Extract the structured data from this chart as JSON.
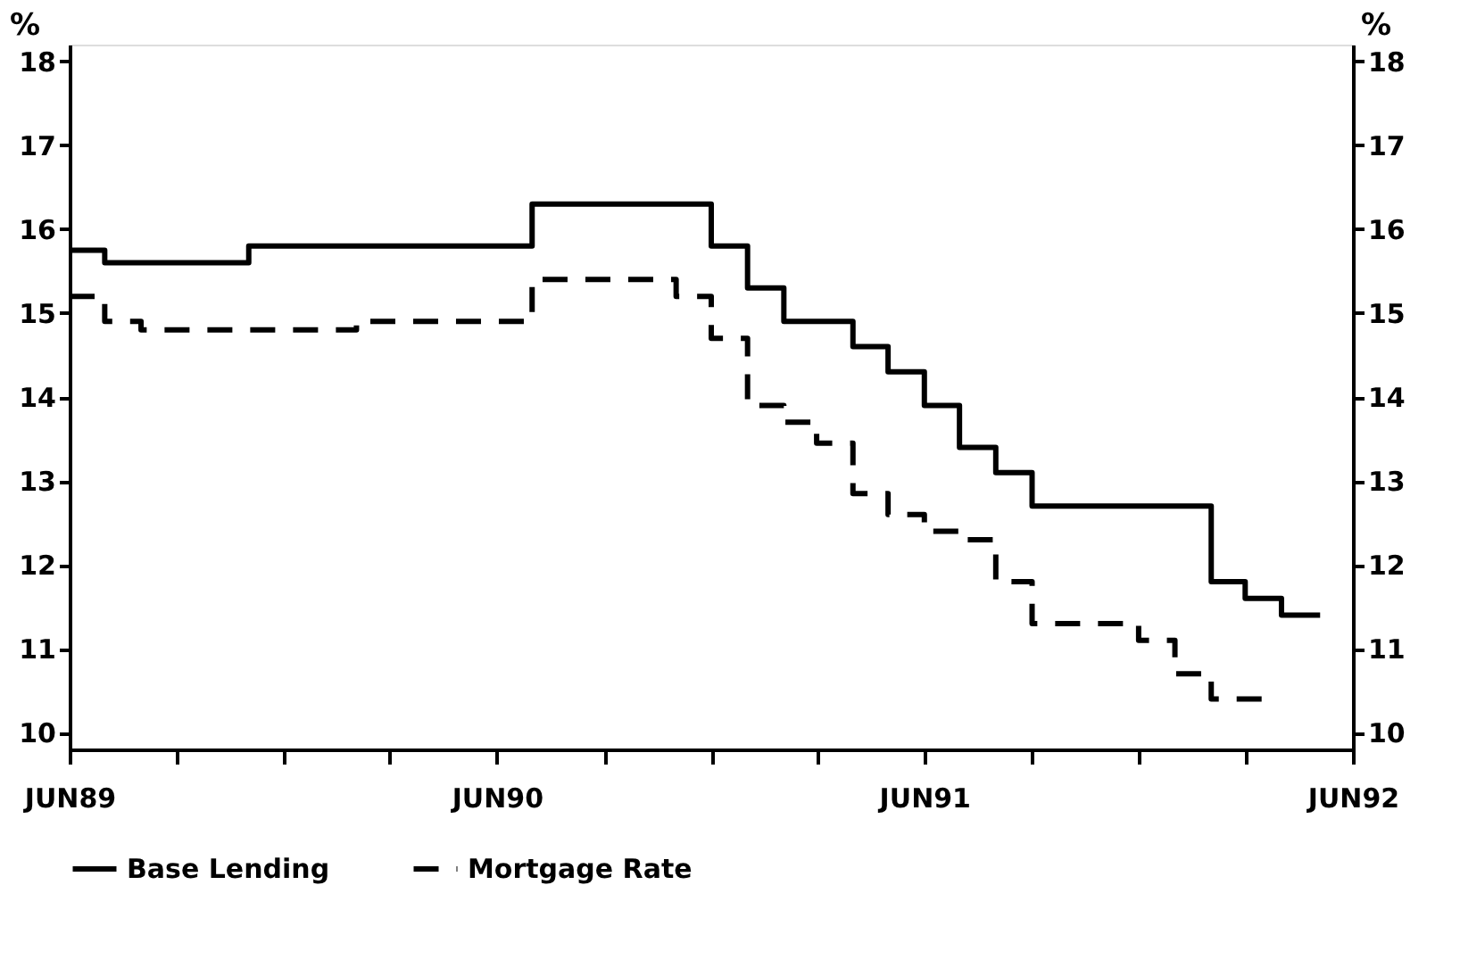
{
  "chart_data": {
    "type": "step",
    "ylabel": "%",
    "y2label": "%",
    "xlim": [
      "1989-06",
      "1992-06"
    ],
    "xticks": [
      {
        "value": "1989-06",
        "label": "JUN89"
      },
      {
        "value": "1989-09",
        "label": null
      },
      {
        "value": "1989-12",
        "label": null
      },
      {
        "value": "1990-03",
        "label": null
      },
      {
        "value": "1990-06",
        "label": "JUN90"
      },
      {
        "value": "1990-09",
        "label": null
      },
      {
        "value": "1990-12",
        "label": null
      },
      {
        "value": "1991-03",
        "label": null
      },
      {
        "value": "1991-06",
        "label": "JUN91"
      },
      {
        "value": "1991-09",
        "label": null
      },
      {
        "value": "1991-12",
        "label": null
      },
      {
        "value": "1992-03",
        "label": null
      },
      {
        "value": "1992-06",
        "label": "JUN92"
      }
    ],
    "ylim": [
      9.8,
      18.2
    ],
    "yticks": [
      10,
      11,
      12,
      13,
      14,
      15,
      16,
      17,
      18
    ],
    "y2lim": [
      9.8,
      18.2
    ],
    "y2ticks": [
      10,
      11,
      12,
      13,
      14,
      15,
      16,
      17,
      18
    ],
    "series": [
      {
        "name": "Base Lending",
        "color": "#000000",
        "line_style": "solid",
        "x": [
          "1989-06",
          "1989-07",
          "1989-11",
          "1990-07",
          "1990-12",
          "1991-01",
          "1991-02",
          "1991-04",
          "1991-05",
          "1991-06",
          "1991-07",
          "1991-08",
          "1991-09",
          "1992-02",
          "1992-03",
          "1992-04",
          "1992-05-04"
        ],
        "values": [
          15.75,
          15.6,
          15.8,
          16.3,
          15.8,
          15.3,
          14.9,
          14.6,
          14.3,
          13.9,
          13.4,
          13.1,
          12.7,
          11.8,
          11.6,
          11.4,
          11.4
        ]
      },
      {
        "name": "Mortgage Rate",
        "color": "#000000",
        "line_style": "dashed",
        "x": [
          "1989-06",
          "1989-07",
          "1989-08",
          "1990-02",
          "1990-07",
          "1990-11",
          "1990-12",
          "1991-01",
          "1991-02",
          "1991-03",
          "1991-04",
          "1991-05",
          "1991-06",
          "1991-07",
          "1991-08",
          "1991-09",
          "1991-12",
          "1992-01",
          "1992-02",
          "1992-03-19"
        ],
        "values": [
          15.2,
          14.9,
          14.8,
          14.9,
          15.4,
          15.2,
          14.7,
          13.9,
          13.7,
          13.45,
          12.85,
          12.6,
          12.4,
          12.3,
          11.8,
          11.3,
          11.1,
          10.7,
          10.4,
          10.4
        ]
      }
    ],
    "legend": "bottom",
    "grid": false
  }
}
